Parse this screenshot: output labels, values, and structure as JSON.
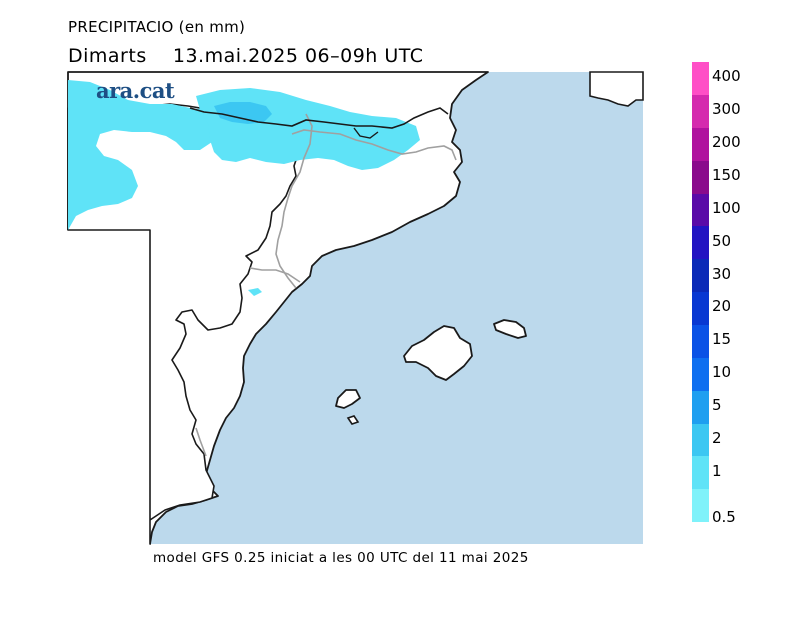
{
  "header": {
    "title": "PRECIPITACIO (en mm)",
    "subtitle": "Dimarts    13.mai.2025 06–09h UTC"
  },
  "logo": {
    "text": "ara.cat"
  },
  "footer": {
    "text": "model GFS 0.25 iniciat a les 00 UTC del 11 mai 2025"
  },
  "colors": {
    "sea": "#bcd9ec",
    "land": "#ffffff",
    "coast": "#1a1a1a",
    "border": "#a0a0a0",
    "precip_light": "#5fe3f7",
    "precip_medium": "#3cc7f2"
  },
  "legend": {
    "bands": [
      {
        "label": "0.5",
        "color": "#7ff2fa"
      },
      {
        "label": "1",
        "color": "#5fe3f7"
      },
      {
        "label": "2",
        "color": "#3cc7f2"
      },
      {
        "label": "5",
        "color": "#1f9ff0"
      },
      {
        "label": "10",
        "color": "#0e6ff0"
      },
      {
        "label": "15",
        "color": "#0a52e6"
      },
      {
        "label": "20",
        "color": "#0838d2"
      },
      {
        "label": "30",
        "color": "#0a2ab8"
      },
      {
        "label": "50",
        "color": "#2214c2"
      },
      {
        "label": "100",
        "color": "#5a0aa8"
      },
      {
        "label": "150",
        "color": "#8a0a8c"
      },
      {
        "label": "200",
        "color": "#b0129e"
      },
      {
        "label": "300",
        "color": "#d52aae"
      },
      {
        "label": "400",
        "color": "#ff4fc6"
      }
    ]
  }
}
